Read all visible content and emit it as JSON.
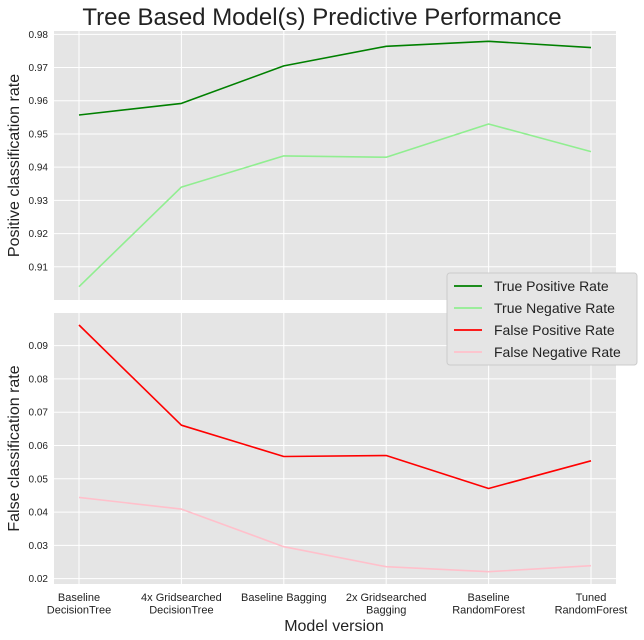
{
  "title": "Tree Based Model(s) Predictive Performance",
  "xlabel": "Model version",
  "categories": [
    [
      "Baseline",
      "DecisionTree"
    ],
    [
      "4x Gridsearched",
      "DecisionTree"
    ],
    [
      "Baseline Bagging"
    ],
    [
      "2x Gridsearched",
      "Bagging"
    ],
    [
      "Baseline",
      "RandomForest"
    ],
    [
      "Tuned",
      "RandomForest"
    ]
  ],
  "chart_data": [
    {
      "type": "line",
      "ylabel": "Positive classification rate",
      "ylim": [
        0.9,
        0.981
      ],
      "yticks": [
        0.91,
        0.92,
        0.93,
        0.94,
        0.95,
        0.96,
        0.97,
        0.98
      ],
      "yticklabels": [
        "0.91",
        "0.92",
        "0.93",
        "0.94",
        "0.95",
        "0.96",
        "0.97",
        "0.98"
      ],
      "grid": true,
      "series": [
        {
          "name": "True Positive Rate",
          "color": "#008000",
          "values": [
            0.9557,
            0.9592,
            0.9705,
            0.9764,
            0.9779,
            0.976
          ]
        },
        {
          "name": "True Negative Rate",
          "color": "#90ee90",
          "values": [
            0.904,
            0.934,
            0.9434,
            0.943,
            0.953,
            0.9447
          ]
        }
      ]
    },
    {
      "type": "line",
      "ylabel": "False classification rate",
      "ylim": [
        0.0184,
        0.0998
      ],
      "yticks": [
        0.02,
        0.03,
        0.04,
        0.05,
        0.06,
        0.07,
        0.08,
        0.09
      ],
      "yticklabels": [
        "0.02",
        "0.03",
        "0.04",
        "0.05",
        "0.06",
        "0.07",
        "0.08",
        "0.09"
      ],
      "grid": true,
      "series": [
        {
          "name": "False Positive Rate",
          "color": "#ff0000",
          "values": [
            0.0962,
            0.0661,
            0.0567,
            0.057,
            0.0471,
            0.0554
          ]
        },
        {
          "name": "False Negative Rate",
          "color": "#ffc0cb",
          "values": [
            0.0444,
            0.0409,
            0.0296,
            0.0236,
            0.0221,
            0.0239
          ]
        }
      ]
    }
  ],
  "legend": {
    "placement": "right",
    "entries": [
      "True Positive Rate",
      "True Negative Rate",
      "False Positive Rate",
      "False Negative Rate"
    ]
  }
}
